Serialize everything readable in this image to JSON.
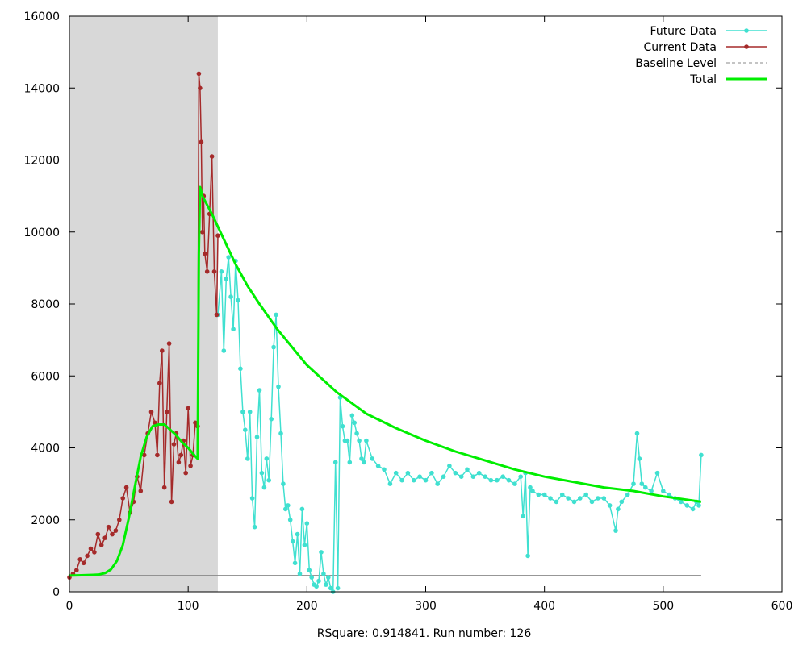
{
  "chart_data": {
    "type": "line",
    "title": "",
    "xlabel": "RSquare: 0.914841. Run number: 126",
    "ylabel": "",
    "xlim": [
      0,
      600
    ],
    "ylim": [
      0,
      16000
    ],
    "x_ticks": [
      0,
      100,
      200,
      300,
      400,
      500,
      600
    ],
    "y_ticks": [
      0,
      2000,
      4000,
      6000,
      8000,
      10000,
      12000,
      14000,
      16000
    ],
    "grid": false,
    "legend_position": "top-right",
    "shaded_region": {
      "x_start": 0,
      "x_end": 125,
      "color": "#d8d8d8"
    },
    "series": [
      {
        "name": "Future Data",
        "color": "#40e0d0",
        "style": "line-points",
        "x": [
          125,
          128,
          130,
          132,
          134,
          136,
          138,
          140,
          142,
          144,
          146,
          148,
          150,
          152,
          154,
          156,
          158,
          160,
          162,
          164,
          166,
          168,
          170,
          172,
          174,
          176,
          178,
          180,
          182,
          184,
          186,
          188,
          190,
          192,
          194,
          196,
          198,
          200,
          202,
          204,
          206,
          208,
          210,
          212,
          214,
          216,
          218,
          220,
          222,
          224,
          226,
          228,
          230,
          232,
          234,
          236,
          238,
          240,
          242,
          244,
          246,
          248,
          250,
          255,
          260,
          265,
          270,
          275,
          280,
          285,
          290,
          295,
          300,
          305,
          310,
          315,
          320,
          325,
          330,
          335,
          340,
          345,
          350,
          355,
          360,
          365,
          370,
          375,
          380,
          382,
          384,
          386,
          388,
          390,
          395,
          400,
          405,
          410,
          415,
          420,
          425,
          430,
          435,
          440,
          445,
          450,
          455,
          460,
          462,
          465,
          470,
          475,
          478,
          480,
          482,
          485,
          490,
          495,
          500,
          505,
          510,
          515,
          520,
          525,
          528,
          530,
          532
        ],
        "y": [
          7700,
          8900,
          6700,
          8700,
          9300,
          8200,
          7300,
          9200,
          8100,
          6200,
          5000,
          4500,
          3700,
          5000,
          2600,
          1800,
          4300,
          5600,
          3300,
          2900,
          3700,
          3100,
          4800,
          6800,
          7700,
          5700,
          4400,
          3000,
          2300,
          2400,
          2000,
          1400,
          800,
          1600,
          500,
          2300,
          1300,
          1900,
          600,
          400,
          200,
          150,
          300,
          1100,
          500,
          200,
          400,
          100,
          0,
          3600,
          100,
          5400,
          4600,
          4200,
          4200,
          3600,
          4900,
          4700,
          4400,
          4200,
          3700,
          3600,
          4200,
          3700,
          3500,
          3400,
          3000,
          3300,
          3100,
          3300,
          3100,
          3200,
          3100,
          3300,
          3000,
          3200,
          3500,
          3300,
          3200,
          3400,
          3200,
          3300,
          3200,
          3100,
          3100,
          3200,
          3100,
          3000,
          3200,
          2100,
          3300,
          1000,
          2900,
          2800,
          2700,
          2700,
          2600,
          2500,
          2700,
          2600,
          2500,
          2600,
          2700,
          2500,
          2600,
          2600,
          2400,
          1700,
          2300,
          2500,
          2700,
          3000,
          4400,
          3700,
          3000,
          2900,
          2800,
          3300,
          2800,
          2700,
          2600,
          2500,
          2400,
          2300,
          2500,
          2400,
          3800
        ]
      },
      {
        "name": "Current Data",
        "color": "#a52a2a",
        "style": "line-points",
        "x": [
          0,
          3,
          6,
          9,
          12,
          15,
          18,
          21,
          24,
          27,
          30,
          33,
          36,
          39,
          42,
          45,
          48,
          51,
          54,
          57,
          60,
          63,
          66,
          69,
          72,
          74,
          76,
          78,
          80,
          82,
          84,
          86,
          88,
          90,
          92,
          94,
          96,
          98,
          100,
          102,
          104,
          106,
          108,
          109,
          110,
          111,
          112,
          113,
          114,
          116,
          118,
          120,
          122,
          124,
          125
        ],
        "y": [
          400,
          500,
          600,
          900,
          800,
          1000,
          1200,
          1100,
          1600,
          1300,
          1500,
          1800,
          1600,
          1700,
          2000,
          2600,
          2900,
          2200,
          2500,
          3200,
          2800,
          3800,
          4400,
          5000,
          4700,
          3800,
          5800,
          6700,
          2900,
          5000,
          6900,
          2500,
          4100,
          4400,
          3600,
          3800,
          4200,
          3300,
          5100,
          3500,
          3800,
          4700,
          4600,
          14400,
          14000,
          12500,
          10000,
          11000,
          9400,
          8900,
          10500,
          12100,
          8900,
          7700,
          9900
        ]
      },
      {
        "name": "Baseline Level",
        "color": "#888888",
        "style": "line",
        "x": [
          0,
          532
        ],
        "y": [
          450,
          450
        ]
      },
      {
        "name": "Total",
        "color": "#00ee00",
        "style": "thick-line",
        "x": [
          0,
          10,
          20,
          25,
          30,
          35,
          40,
          45,
          50,
          55,
          60,
          65,
          70,
          75,
          80,
          85,
          90,
          95,
          100,
          105,
          108,
          109,
          110,
          112,
          120,
          130,
          140,
          150,
          160,
          175,
          200,
          225,
          250,
          275,
          300,
          325,
          350,
          375,
          400,
          425,
          450,
          475,
          500,
          520,
          532
        ],
        "y": [
          450,
          460,
          470,
          480,
          520,
          620,
          860,
          1300,
          2050,
          2900,
          3750,
          4300,
          4600,
          4650,
          4650,
          4500,
          4350,
          4150,
          4000,
          3800,
          3700,
          9400,
          11250,
          11000,
          10500,
          9800,
          9100,
          8500,
          8000,
          7300,
          6300,
          5550,
          4950,
          4550,
          4200,
          3900,
          3650,
          3400,
          3200,
          3050,
          2900,
          2800,
          2650,
          2560,
          2500
        ]
      }
    ]
  }
}
